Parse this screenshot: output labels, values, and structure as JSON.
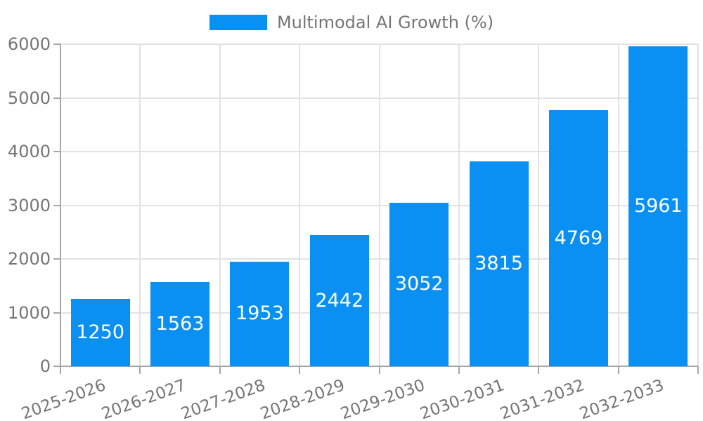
{
  "chart_data": {
    "type": "bar",
    "legend": {
      "label": "Multimodal AI Growth (%)",
      "position": "top-center"
    },
    "categories": [
      "2025-2026",
      "2026-2027",
      "2027-2028",
      "2028-2029",
      "2029-2030",
      "2030-2031",
      "2031-2032",
      "2032-2033"
    ],
    "values": [
      1250,
      1563,
      1953,
      2442,
      3052,
      3815,
      4769,
      5961
    ],
    "series": [
      {
        "name": "Multimodal AI Growth (%)",
        "values": [
          1250,
          1563,
          1953,
          2442,
          3052,
          3815,
          4769,
          5961
        ]
      }
    ],
    "title": "",
    "xlabel": "",
    "ylabel": "",
    "ylim": [
      0,
      6000
    ],
    "yticks": [
      0,
      1000,
      2000,
      3000,
      4000,
      5000,
      6000
    ],
    "grid": true,
    "xtick_rotation_deg": -20,
    "value_label_position": "inside-center",
    "colors": {
      "bar": "#0a90f2",
      "value_label": "#ffffff",
      "axis": "#a6a6a6",
      "grid": "#e2e2e2",
      "tick_text": "#757575",
      "background": "#ffffff"
    }
  }
}
